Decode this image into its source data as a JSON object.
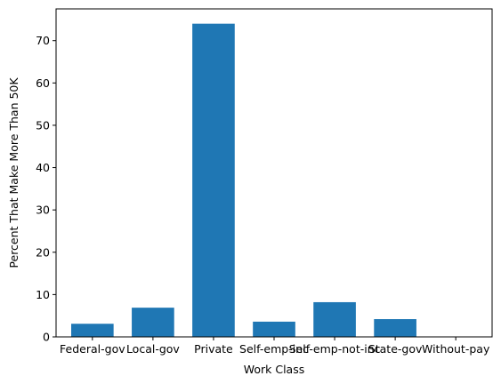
{
  "chart_data": {
    "type": "bar",
    "categories": [
      "Federal-gov",
      "Local-gov",
      "Private",
      "Self-emp-inc",
      "Self-emp-not-inc",
      "State-gov",
      "Without-pay"
    ],
    "values": [
      3.1,
      6.9,
      74.0,
      3.6,
      8.2,
      4.2,
      0.1
    ],
    "xlabel": "Work Class",
    "ylabel": "Percent That Make More Than 50K",
    "ylim": [
      0,
      77.5
    ],
    "yticks": [
      0,
      10,
      20,
      30,
      40,
      50,
      60,
      70
    ],
    "bar_color": "#1f77b4",
    "grid": false,
    "legend": "none"
  }
}
